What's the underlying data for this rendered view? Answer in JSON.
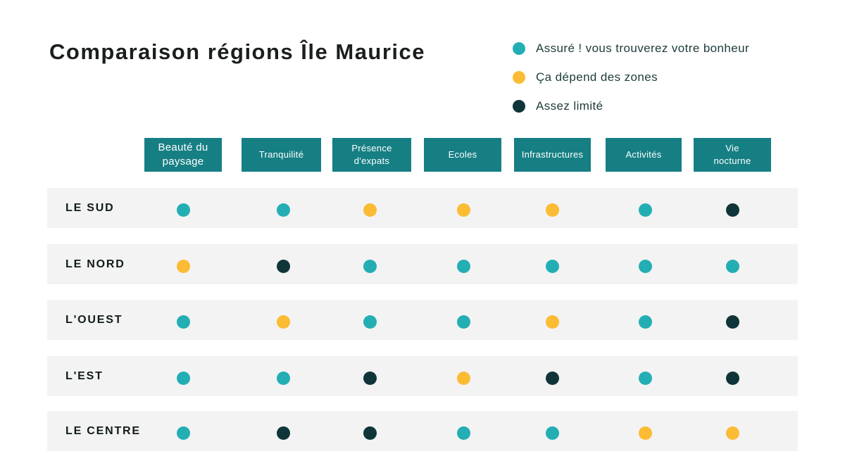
{
  "chart_data": {
    "type": "table",
    "title": "Comparaison régions Île Maurice",
    "legend": [
      {
        "key": "assure",
        "label": "Assuré ! vous trouverez votre bonheur",
        "color": "#23aeb4"
      },
      {
        "key": "depend",
        "label": "Ça dépend des zones",
        "color": "#fbbb33"
      },
      {
        "key": "limite",
        "label": "Assez limité",
        "color": "#0f3539"
      }
    ],
    "columns": [
      "Beauté du paysage",
      "Tranquilité",
      "Présence d'expats",
      "Ecoles",
      "Infrastructures",
      "Activités",
      "Vie nocturne"
    ],
    "rows": [
      {
        "label": "LE SUD",
        "values": [
          "assure",
          "assure",
          "depend",
          "depend",
          "depend",
          "assure",
          "limite"
        ]
      },
      {
        "label": "LE NORD",
        "values": [
          "depend",
          "limite",
          "assure",
          "assure",
          "assure",
          "assure",
          "assure"
        ]
      },
      {
        "label": "L'OUEST",
        "values": [
          "assure",
          "depend",
          "assure",
          "assure",
          "depend",
          "assure",
          "limite"
        ]
      },
      {
        "label": "L'EST",
        "values": [
          "assure",
          "assure",
          "limite",
          "depend",
          "limite",
          "assure",
          "limite"
        ]
      },
      {
        "label": "LE CENTRE",
        "values": [
          "assure",
          "limite",
          "limite",
          "assure",
          "assure",
          "depend",
          "depend"
        ]
      }
    ]
  }
}
